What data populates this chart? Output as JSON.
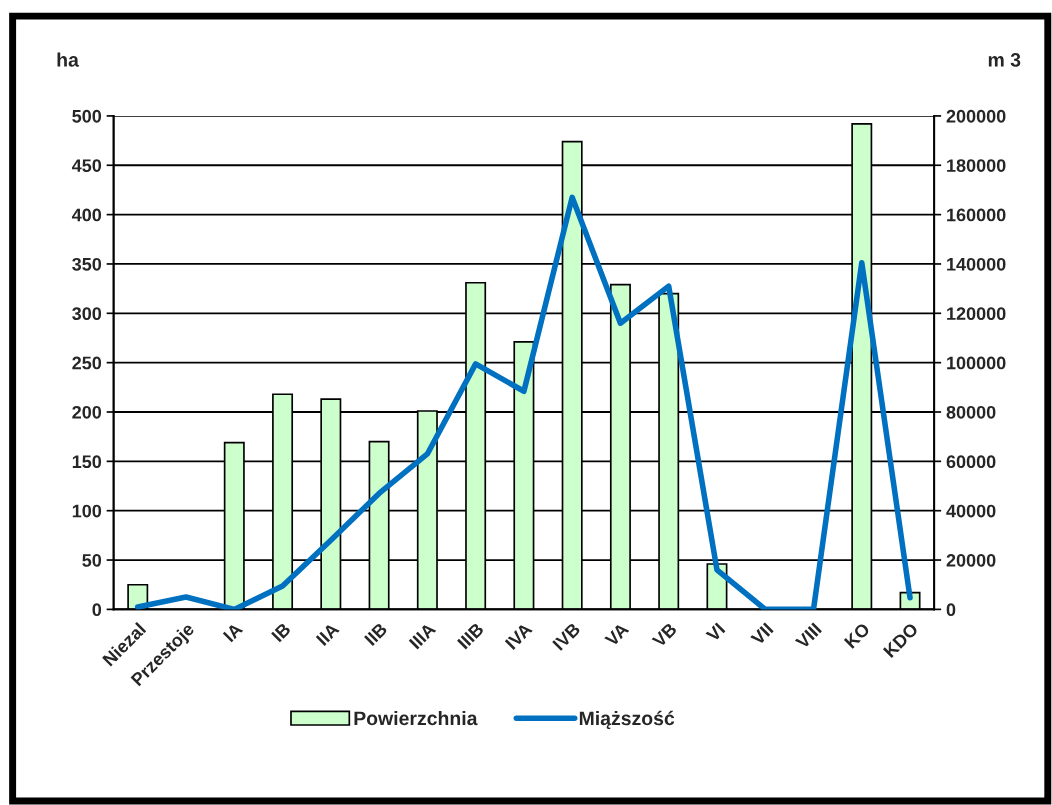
{
  "chart_data": {
    "type": "bar",
    "ylabel": "ha",
    "y2label": "m 3",
    "categories": [
      "Niezal",
      "Przestoje",
      "IA",
      "IB",
      "IIA",
      "IIB",
      "IIIA",
      "IIIB",
      "IVA",
      "IVB",
      "VA",
      "VB",
      "VI",
      "VII",
      "VIII",
      "KO",
      "KDO"
    ],
    "series": [
      {
        "name": "Powierzchnia",
        "color": "#ccffcc",
        "values": [
          25,
          0,
          169,
          218,
          213,
          170,
          201,
          331,
          271,
          474,
          329,
          320,
          46,
          0,
          0,
          492,
          17
        ]
      },
      {
        "name": "Miąższość",
        "type": "line",
        "axis": "y2",
        "color": "#0070c0",
        "values": [
          1000,
          5000,
          0,
          9500,
          28000,
          47000,
          63000,
          99500,
          88400,
          167000,
          116000,
          131000,
          16000,
          0,
          0,
          140500,
          4700
        ]
      }
    ],
    "ylim": [
      0,
      500
    ],
    "yticks": [
      0,
      50,
      100,
      150,
      200,
      250,
      300,
      350,
      400,
      450,
      500
    ],
    "y2lim": [
      0,
      200000
    ],
    "y2ticks": [
      0,
      20000,
      40000,
      60000,
      80000,
      100000,
      120000,
      140000,
      160000,
      180000,
      200000
    ],
    "grid": "y",
    "legend": "bottom",
    "marker": "none",
    "line_style": "solid"
  }
}
